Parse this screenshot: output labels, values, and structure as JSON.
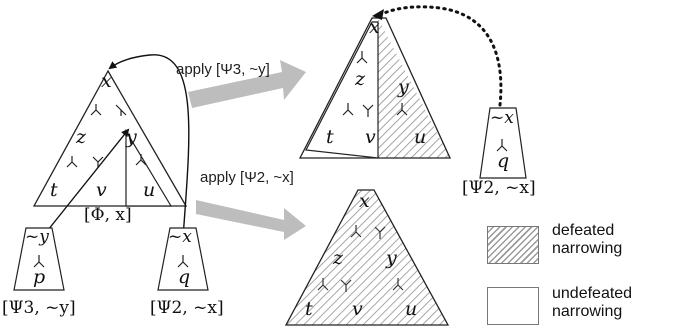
{
  "apply_labels": {
    "top": "apply [Ψ3, ~y]",
    "bottom": "apply [Ψ2, ~x]"
  },
  "tree_left": {
    "nodes": {
      "x": "x",
      "z": "z",
      "y": "y",
      "t": "t",
      "v": "v",
      "u": "u"
    },
    "caption": "[Φ, x]"
  },
  "narrowing_psi3_left": {
    "root": "~y",
    "leaf": "p",
    "caption": "[Ψ3, ~y]"
  },
  "narrowing_psi2_left": {
    "root": "~x",
    "leaf": "q",
    "caption": "[Ψ2, ~x]"
  },
  "tree_top_right": {
    "nodes": {
      "x": "x",
      "z": "z",
      "y": "y",
      "t": "t",
      "v": "v",
      "u": "u"
    }
  },
  "narrowing_psi2_right": {
    "root": "~x",
    "leaf": "q",
    "caption": "[Ψ2, ~x]"
  },
  "tree_bottom_right": {
    "nodes": {
      "x": "x",
      "z": "z",
      "y": "y",
      "t": "t",
      "v": "v",
      "u": "u"
    }
  },
  "legend": {
    "defeated_line1": "defeated",
    "defeated_line2": "narrowing",
    "undefeated_line1": "undefeated",
    "undefeated_line2": "narrowing"
  },
  "colors": {
    "hatch": "#9a9a9a",
    "arrow_gray": "#bdbdbd",
    "outline": "#222222"
  }
}
